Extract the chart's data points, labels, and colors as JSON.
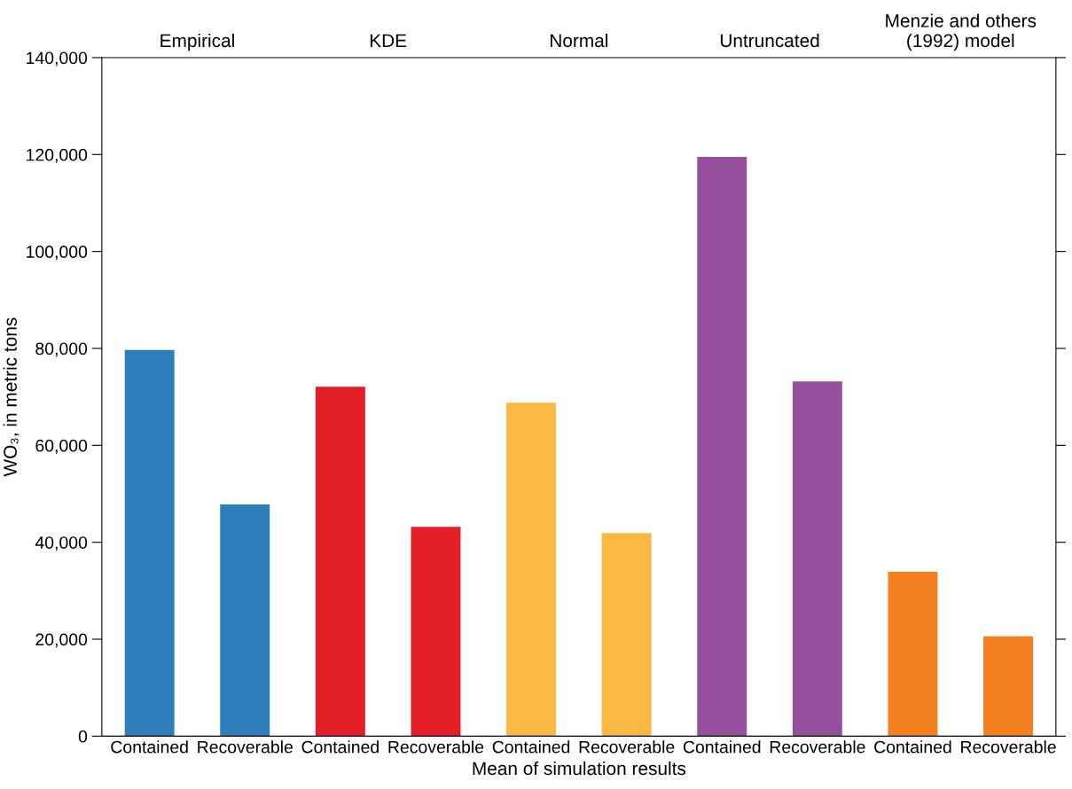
{
  "chart_data": {
    "type": "bar",
    "xlabel": "Mean of simulation results",
    "ylabel": "WO₃, in metric tons",
    "categories": [
      "Contained",
      "Recoverable",
      "Contained",
      "Recoverable",
      "Contained",
      "Recoverable",
      "Contained",
      "Recoverable",
      "Contained",
      "Recoverable"
    ],
    "values": [
      79700,
      47800,
      72100,
      43200,
      68800,
      41900,
      119500,
      73200,
      33900,
      20600
    ],
    "colors": [
      "#2e7ebc",
      "#2e7ebc",
      "#e31f26",
      "#e31f26",
      "#fbb943",
      "#fbb943",
      "#954f9e",
      "#954f9e",
      "#f58020",
      "#f58020"
    ],
    "annotations": [
      "Empirical",
      "KDE",
      "Normal",
      "Untruncated",
      "Menzie and others\n(1992) model"
    ],
    "ylim": [
      0,
      140000
    ],
    "yticks": [
      0,
      {
        "value": 20000,
        "label": "20,000"
      },
      {
        "value": 40000,
        "label": "40,000"
      },
      {
        "value": 60000,
        "label": "60,000"
      },
      {
        "value": 80000,
        "label": "80,000"
      },
      {
        "value": 100000,
        "label": "100,000"
      },
      {
        "value": 120000,
        "label": "120,000"
      },
      {
        "value": 140000,
        "label": "140,000"
      }
    ],
    "grid": false,
    "legend": false
  }
}
